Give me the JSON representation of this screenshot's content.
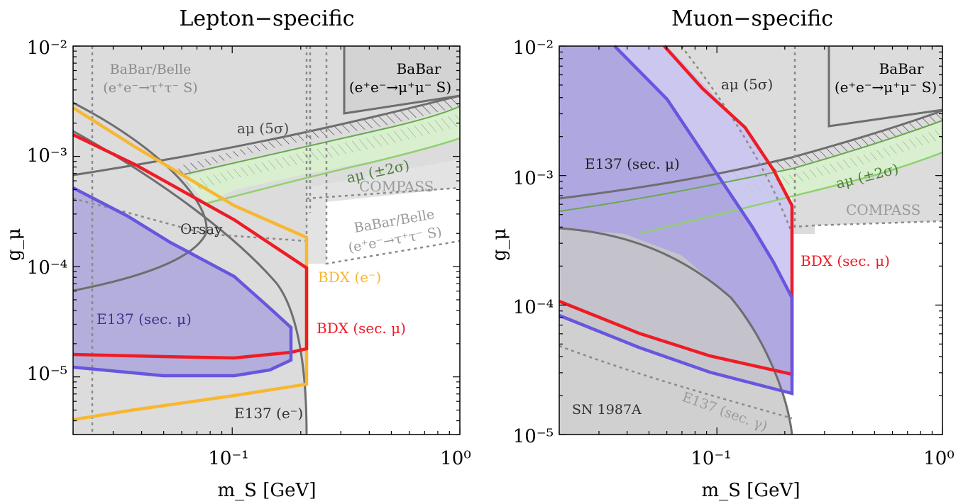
{
  "chart_data": [
    {
      "type": "area",
      "title": "Lepton−specific",
      "xlabel": "m_S [GeV]",
      "ylabel": "g_μ",
      "xscale": "log",
      "yscale": "log",
      "xlim": [
        0.02,
        1.0
      ],
      "ylim": [
        3e-06,
        0.01
      ],
      "x_ticks": [
        {
          "value": 0.1,
          "label": "10⁻¹"
        },
        {
          "value": 1.0,
          "label": "10⁰"
        }
      ],
      "y_ticks": [
        {
          "value": 1e-05,
          "label": "10⁻⁵"
        },
        {
          "value": 0.0001,
          "label": "10⁻⁴"
        },
        {
          "value": 0.001,
          "label": "10⁻³"
        },
        {
          "value": 0.01,
          "label": "10⁻²"
        }
      ],
      "labels": {
        "babar_belle_tau_1": "BaBar/Belle",
        "babar_belle_tau_2": "(e⁺e⁻→τ⁺τ⁻ S)",
        "babar_mu_1": "BaBar",
        "babar_mu_2": "(e⁺e⁻→μ⁺μ⁻ S)",
        "amu_5sigma": "aμ (5σ)",
        "amu_2sigma": "aμ (±2σ)",
        "compass": "COMPASS",
        "babar_belle_tau_b1": "BaBar/Belle",
        "babar_belle_tau_b2": "(e⁺e⁻→τ⁺τ⁻ S)",
        "orsay": "Orsay",
        "bdx_e": "BDX (e⁻)",
        "bdx_mu": "BDX (sec. μ)",
        "e137_mu": "E137 (sec. μ)",
        "e137_e": "E137 (e⁻)"
      },
      "series": [
        {
          "name": "BDX (sec. μ)",
          "color": "#ee1c25",
          "x": [
            0.02,
            0.05,
            0.1,
            0.15,
            0.21,
            0.21,
            0.21,
            0.1,
            0.05,
            0.02
          ],
          "y": [
            0.0017,
            0.00065,
            0.00028,
            0.00016,
            9.6e-05,
            1.8e-05,
            1.8e-05,
            1.45e-05,
            1.5e-05,
            1.6e-05
          ]
        },
        {
          "name": "BDX (e⁻)",
          "color": "#f7b731",
          "x": [
            0.02,
            0.05,
            0.1,
            0.15,
            0.21,
            0.21,
            0.21,
            0.1,
            0.05,
            0.02
          ],
          "y": [
            0.003,
            0.0014,
            0.00062,
            0.00035,
            0.000195,
            8.5e-06,
            8.5e-06,
            6e-06,
            5e-06,
            4e-06
          ]
        },
        {
          "name": "E137 (sec. μ)",
          "color": "#6756de",
          "x": [
            0.02,
            0.05,
            0.1,
            0.14,
            0.18,
            0.18,
            0.14,
            0.1,
            0.05,
            0.02
          ],
          "y": [
            0.00053,
            0.0002,
            8e-05,
            4.8e-05,
            2.7e-05,
            1.3e-05,
            1.2e-05,
            1.07e-05,
            1.07e-05,
            1.25e-05
          ]
        },
        {
          "name": "aμ (5σ)",
          "color": "#7f7f7f",
          "x": [
            0.02,
            0.1,
            0.3,
            0.6,
            1.0
          ],
          "y": [
            0.0007,
            0.0009,
            0.00145,
            0.0024,
            0.0036
          ]
        }
      ]
    },
    {
      "type": "area",
      "title": "Muon−specific",
      "xlabel": "m_S [GeV]",
      "ylabel": "g_μ",
      "xscale": "log",
      "yscale": "log",
      "xlim": [
        0.02,
        1.0
      ],
      "ylim": [
        1e-05,
        0.01
      ],
      "x_ticks": [
        {
          "value": 0.1,
          "label": "10⁻¹"
        },
        {
          "value": 1.0,
          "label": "10⁰"
        }
      ],
      "y_ticks": [
        {
          "value": 1e-05,
          "label": "10⁻⁵"
        },
        {
          "value": 0.0001,
          "label": "10⁻⁴"
        },
        {
          "value": 0.001,
          "label": "10⁻³"
        },
        {
          "value": 0.01,
          "label": "10⁻²"
        }
      ],
      "labels": {
        "amu_5sigma": "aμ (5σ)",
        "babar_mu_1": "BaBar",
        "babar_mu_2": "(e⁺e⁻→μ⁺μ⁻ S)",
        "e137_mu": "E137 (sec. μ)",
        "amu_2sigma": "aμ (±2σ)",
        "compass": "COMPASS",
        "bdx_mu": "BDX (sec. μ)",
        "e137_gamma": "E137 (sec. γ)",
        "sn1987a": "SN 1987A"
      },
      "series": [
        {
          "name": "BDX (sec. μ)",
          "color": "#ee1c25",
          "x": [
            0.06,
            0.1,
            0.15,
            0.21,
            0.21,
            0.21,
            0.1,
            0.05,
            0.02
          ],
          "y": [
            0.01,
            0.0032,
            0.0012,
            0.0004,
            2.8e-05,
            2.8e-05,
            4.2e-05,
            6.5e-05,
            0.00011
          ]
        },
        {
          "name": "E137 (sec. μ)",
          "color": "#6756de",
          "x": [
            0.04,
            0.1,
            0.15,
            0.21,
            0.21,
            0.21,
            0.1,
            0.05,
            0.02
          ],
          "y": [
            0.01,
            0.0014,
            0.0004,
            0.00011,
            2.05e-05,
            2.05e-05,
            3e-05,
            4.5e-05,
            8.5e-05
          ]
        },
        {
          "name": "aμ (5σ)",
          "color": "#7f7f7f",
          "x": [
            0.02,
            0.1,
            0.3,
            0.6,
            1.0
          ],
          "y": [
            0.00069,
            0.0009,
            0.00145,
            0.0024,
            0.0036
          ]
        }
      ]
    }
  ]
}
